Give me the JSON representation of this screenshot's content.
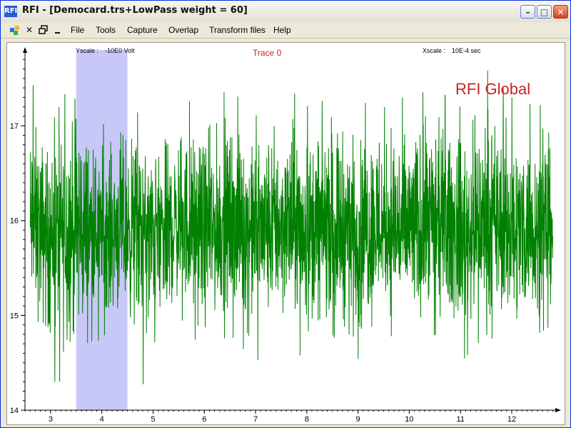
{
  "window": {
    "app_short": "RFI",
    "title": "RFI  - [Democard.trs+LowPass weight = 60]"
  },
  "window_controls": {
    "minimize": "–",
    "maximize": "□",
    "close": "✕"
  },
  "menu": {
    "icons": [
      "app-menu-icon",
      "close-doc-icon",
      "restore-doc-icon",
      "minimize-doc-icon"
    ],
    "items": [
      "File",
      "Tools",
      "Capture",
      "Overlap",
      "Transform files",
      "Help"
    ]
  },
  "plot": {
    "yscale_label": "Yscale :",
    "yscale_value": "-10E0  Volt",
    "xscale_label": "Xscale :",
    "xscale_value": "10E-4  sec",
    "trace_label": "Trace 0",
    "watermark": "RFI Global",
    "colors": {
      "signal": "#008000",
      "trace": "#cc2222",
      "selection": "#c8c8f8"
    }
  },
  "chart_data": {
    "type": "line",
    "title": "Trace 0",
    "xlabel": "",
    "ylabel": "",
    "x_ticks": [
      3,
      4,
      5,
      6,
      7,
      8,
      9,
      10,
      11,
      12
    ],
    "y_ticks": [
      14,
      15,
      16,
      17
    ],
    "xlim": [
      2.5,
      12.85
    ],
    "ylim": [
      14,
      17.8
    ],
    "selection_x": [
      3.5,
      4.5
    ],
    "signal_center": 15.9,
    "series": [
      {
        "name": "",
        "envelope_x": [
          2.6,
          3.0,
          3.5,
          4.0,
          4.5,
          5.0,
          5.5,
          6.0,
          6.5,
          7.0,
          7.5,
          8.0,
          8.5,
          9.0,
          9.5,
          10.0,
          10.5,
          11.0,
          11.5,
          12.0,
          12.5,
          12.8
        ],
        "envelope_max": [
          17.5,
          17.0,
          17.6,
          17.0,
          17.3,
          16.9,
          17.3,
          17.2,
          17.4,
          17.1,
          17.5,
          17.2,
          17.5,
          17.1,
          17.6,
          17.3,
          17.4,
          17.2,
          17.6,
          17.3,
          17.2,
          17.3
        ],
        "envelope_min": [
          14.8,
          14.3,
          14.3,
          14.8,
          14.7,
          14.0,
          15.0,
          14.6,
          14.8,
          14.5,
          14.8,
          14.5,
          14.8,
          14.3,
          14.9,
          14.5,
          14.8,
          14.5,
          14.8,
          14.6,
          14.8,
          14.9
        ]
      }
    ]
  }
}
